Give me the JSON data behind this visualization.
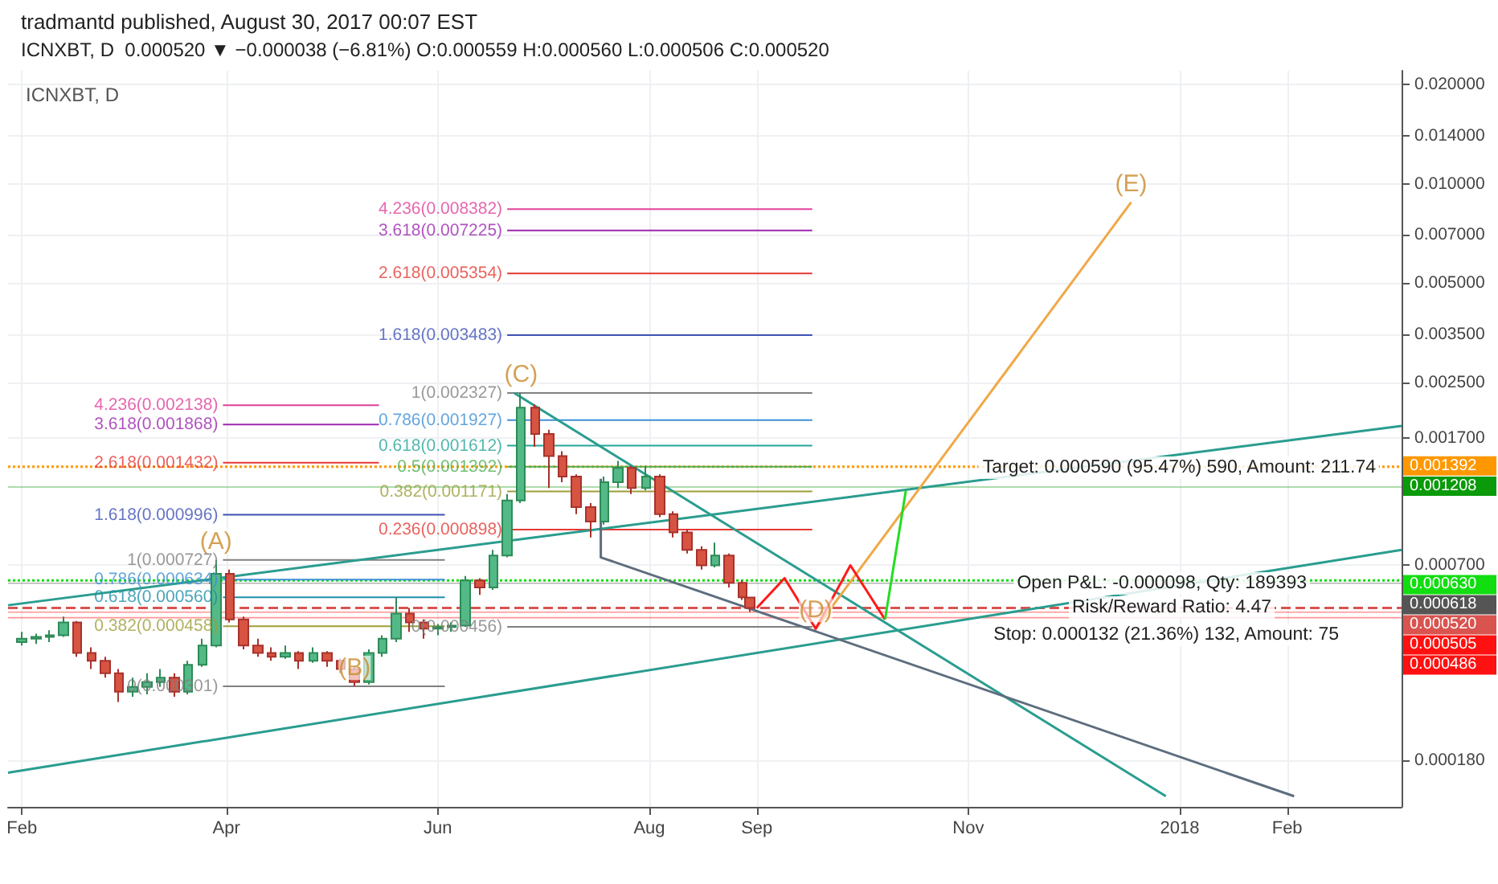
{
  "chart_data": {
    "type": "candlestick",
    "title": "tradmantd published, August 30, 2017 00:07 EST",
    "subtitle": "ICNXBT, D  0.000520 ▼ −0.000038 (−6.81%) O:0.000559 H:0.000560 L:0.000506 C:0.000520",
    "x": [
      "2017-02-01",
      "2017-02-05",
      "2017-02-09",
      "2017-02-13",
      "2017-02-17",
      "2017-02-21",
      "2017-02-25",
      "2017-03-01",
      "2017-03-05",
      "2017-03-09",
      "2017-03-13",
      "2017-03-17",
      "2017-03-21",
      "2017-03-25",
      "2017-03-29",
      "2017-04-02",
      "2017-04-06",
      "2017-04-10",
      "2017-04-14",
      "2017-04-18",
      "2017-04-22",
      "2017-04-26",
      "2017-04-30",
      "2017-05-04",
      "2017-05-08",
      "2017-05-12",
      "2017-05-16",
      "2017-05-20",
      "2017-05-24",
      "2017-05-28",
      "2017-06-01",
      "2017-06-05",
      "2017-06-09",
      "2017-06-13",
      "2017-06-17",
      "2017-06-21",
      "2017-06-25",
      "2017-06-29",
      "2017-07-03",
      "2017-07-07",
      "2017-07-11",
      "2017-07-15",
      "2017-07-19",
      "2017-07-23",
      "2017-07-27",
      "2017-07-31",
      "2017-08-04",
      "2017-08-08",
      "2017-08-12",
      "2017-08-16",
      "2017-08-20",
      "2017-08-24",
      "2017-08-28",
      "2017-08-30"
    ],
    "ohlc": [
      [
        0.00041,
        0.00044,
        0.0004,
        0.00042
      ],
      [
        0.00042,
        0.000435,
        0.000405,
        0.000425
      ],
      [
        0.000425,
        0.000445,
        0.00041,
        0.00043
      ],
      [
        0.00043,
        0.00049,
        0.000425,
        0.00047
      ],
      [
        0.00047,
        0.000475,
        0.00037,
        0.00038
      ],
      [
        0.00038,
        0.000395,
        0.00034,
        0.00036
      ],
      [
        0.00036,
        0.00037,
        0.00032,
        0.00033
      ],
      [
        0.00033,
        0.00034,
        0.00027,
        0.00029
      ],
      [
        0.00029,
        0.00032,
        0.00028,
        0.0003
      ],
      [
        0.0003,
        0.00033,
        0.000285,
        0.00031
      ],
      [
        0.00031,
        0.00034,
        0.0003,
        0.00032
      ],
      [
        0.00032,
        0.00033,
        0.00028,
        0.00029
      ],
      [
        0.00029,
        0.00036,
        0.000285,
        0.00035
      ],
      [
        0.00035,
        0.00042,
        0.000345,
        0.0004
      ],
      [
        0.0004,
        0.000727,
        0.000395,
        0.00066
      ],
      [
        0.00066,
        0.00068,
        0.00047,
        0.00048
      ],
      [
        0.00048,
        0.00049,
        0.00039,
        0.0004
      ],
      [
        0.0004,
        0.00042,
        0.00037,
        0.00038
      ],
      [
        0.00038,
        0.000395,
        0.00036,
        0.00037
      ],
      [
        0.00037,
        0.0004,
        0.000365,
        0.00038
      ],
      [
        0.00038,
        0.000385,
        0.00034,
        0.00036
      ],
      [
        0.00036,
        0.000395,
        0.000355,
        0.00038
      ],
      [
        0.00038,
        0.000385,
        0.000345,
        0.00036
      ],
      [
        0.00036,
        0.000365,
        0.00033,
        0.00034
      ],
      [
        0.00034,
        0.000345,
        0.000301,
        0.00031
      ],
      [
        0.00031,
        0.00039,
        0.000305,
        0.00038
      ],
      [
        0.00038,
        0.00043,
        0.00037,
        0.00042
      ],
      [
        0.00042,
        0.00056,
        0.00041,
        0.0005
      ],
      [
        0.0005,
        0.00052,
        0.00044,
        0.00047
      ],
      [
        0.00047,
        0.00048,
        0.00042,
        0.00045
      ],
      [
        0.00045,
        0.000465,
        0.00043,
        0.000455
      ],
      [
        0.000455,
        0.00047,
        0.00044,
        0.00046
      ],
      [
        0.00046,
        0.00065,
        0.000456,
        0.00063
      ],
      [
        0.00063,
        0.00064,
        0.00057,
        0.0006
      ],
      [
        0.0006,
        0.00078,
        0.00059,
        0.00075
      ],
      [
        0.00075,
        0.00115,
        0.00074,
        0.0011
      ],
      [
        0.0011,
        0.002327,
        0.00108,
        0.0021
      ],
      [
        0.0021,
        0.00215,
        0.0016,
        0.00175
      ],
      [
        0.00175,
        0.0018,
        0.0012,
        0.0015
      ],
      [
        0.0015,
        0.00155,
        0.00125,
        0.0013
      ],
      [
        0.0013,
        0.00132,
        0.001,
        0.00105
      ],
      [
        0.00105,
        0.00108,
        0.00085,
        0.00095
      ],
      [
        0.00095,
        0.0013,
        0.00093,
        0.00125
      ],
      [
        0.00125,
        0.00145,
        0.0012,
        0.00138
      ],
      [
        0.00138,
        0.0014,
        0.00115,
        0.0012
      ],
      [
        0.0012,
        0.0014,
        0.00118,
        0.0013
      ],
      [
        0.0013,
        0.00132,
        0.00098,
        0.001
      ],
      [
        0.001,
        0.00102,
        0.00085,
        0.00088
      ],
      [
        0.00088,
        0.0009,
        0.00076,
        0.00078
      ],
      [
        0.00078,
        0.0008,
        0.00068,
        0.0007
      ],
      [
        0.0007,
        0.00082,
        0.00069,
        0.00075
      ],
      [
        0.00075,
        0.00076,
        0.0006,
        0.00062
      ],
      [
        0.00062,
        0.00063,
        0.00055,
        0.00056
      ],
      [
        0.000559,
        0.00056,
        0.000506,
        0.00052
      ]
    ],
    "series": [
      {
        "type": "line",
        "color": "#2a9d8f",
        "x": [
          "2017-01-28",
          "2018-03-06"
        ],
        "values": [
          0.000165,
          0.00078
        ]
      },
      {
        "type": "line",
        "color": "#2a9d8f",
        "x": [
          "2017-01-28",
          "2018-03-06"
        ],
        "values": [
          0.00053,
          0.00185
        ]
      },
      {
        "type": "line",
        "color": "#2a9d8f",
        "x": [
          "2017-06-23",
          "2017-12-28"
        ],
        "values": [
          0.002327,
          0.00014
        ]
      },
      {
        "type": "line",
        "color": "#5d6d7e",
        "x": [
          "2017-07-18",
          "2017-07-18",
          "2018-02-03"
        ],
        "values": [
          0.00128,
          0.00074,
          0.00014
        ]
      },
      {
        "type": "line",
        "color": "#f0a848",
        "x": [
          "2017-09-18",
          "2017-12-18"
        ],
        "values": [
          0.00045,
          0.0088
        ]
      },
      {
        "type": "line",
        "color": "#ff1a1a",
        "x": [
          "2017-09-01",
          "2017-09-09",
          "2017-09-18",
          "2017-09-28",
          "2017-10-08"
        ],
        "values": [
          0.00052,
          0.00064,
          0.00045,
          0.0007,
          0.00048
        ]
      },
      {
        "type": "line",
        "color": "#22dd22",
        "x": [
          "2017-10-08",
          "2017-10-14"
        ],
        "values": [
          0.00048,
          0.00118
        ]
      },
      {
        "type": "line",
        "name": "4.236(0.002138)",
        "color": "#e0409a",
        "x": [
          "2017-03-31",
          "2017-05-15"
        ],
        "values": [
          0.002138,
          0.002138
        ]
      },
      {
        "type": "line",
        "name": "3.618(0.001868)",
        "color": "#9c27b0",
        "x": [
          "2017-03-31",
          "2017-05-15"
        ],
        "values": [
          0.001868,
          0.001868
        ]
      },
      {
        "type": "line",
        "name": "2.618(0.001432)",
        "color": "#e53935",
        "x": [
          "2017-03-31",
          "2017-05-15"
        ],
        "values": [
          0.001432,
          0.001432
        ]
      },
      {
        "type": "line",
        "name": "1.618(0.000996)",
        "color": "#3f51b5",
        "x": [
          "2017-03-31",
          "2017-06-03"
        ],
        "values": [
          0.000996,
          0.000996
        ]
      },
      {
        "type": "line",
        "name": "1(0.000727)",
        "color": "#808080",
        "x": [
          "2017-03-31",
          "2017-06-03"
        ],
        "values": [
          0.000727,
          0.000727
        ]
      },
      {
        "type": "line",
        "name": "0.786(0.000634)",
        "color": "#3d8fd6",
        "x": [
          "2017-03-31",
          "2017-06-03"
        ],
        "values": [
          0.000634,
          0.000634
        ]
      },
      {
        "type": "line",
        "name": "0.618(0.000560)",
        "color": "#1f8fa8",
        "x": [
          "2017-03-31",
          "2017-06-03"
        ],
        "values": [
          0.00056,
          0.00056
        ]
      },
      {
        "type": "line",
        "name": "0.382(0.000458)",
        "color": "#9e9e3a",
        "x": [
          "2017-03-31",
          "2017-06-03"
        ],
        "values": [
          0.000458,
          0.000458
        ]
      },
      {
        "type": "line",
        "name": "0(0.000301)",
        "color": "#808080",
        "x": [
          "2017-03-31",
          "2017-06-03"
        ],
        "values": [
          0.000301,
          0.000301
        ]
      },
      {
        "type": "line",
        "name": "4.236(0.008382)",
        "color": "#e0409a",
        "x": [
          "2017-06-21",
          "2017-09-17"
        ],
        "values": [
          0.008382,
          0.008382
        ]
      },
      {
        "type": "line",
        "name": "3.618(0.007225)",
        "color": "#9c27b0",
        "x": [
          "2017-06-21",
          "2017-09-17"
        ],
        "values": [
          0.007225,
          0.007225
        ]
      },
      {
        "type": "line",
        "name": "2.618(0.005354)",
        "color": "#e53935",
        "x": [
          "2017-06-21",
          "2017-09-17"
        ],
        "values": [
          0.005354,
          0.005354
        ]
      },
      {
        "type": "line",
        "name": "1.618(0.003483)",
        "color": "#3f51b5",
        "x": [
          "2017-06-21",
          "2017-09-17"
        ],
        "values": [
          0.003483,
          0.003483
        ]
      },
      {
        "type": "line",
        "name": "1(0.002327)",
        "color": "#808080",
        "x": [
          "2017-06-21",
          "2017-09-17"
        ],
        "values": [
          0.002327,
          0.002327
        ]
      },
      {
        "type": "line",
        "name": "0.786(0.001927)",
        "color": "#3d8fd6",
        "x": [
          "2017-06-21",
          "2017-09-17"
        ],
        "values": [
          0.001927,
          0.001927
        ]
      },
      {
        "type": "line",
        "name": "0.618(0.001612)",
        "color": "#26a69a",
        "x": [
          "2017-06-21",
          "2017-09-17"
        ],
        "values": [
          0.001612,
          0.001612
        ]
      },
      {
        "type": "line",
        "name": "0.5(0.001392)",
        "color": "#4caf50",
        "x": [
          "2017-06-21",
          "2017-09-17"
        ],
        "values": [
          0.001392,
          0.001392
        ]
      },
      {
        "type": "line",
        "name": "0.382(0.001171)",
        "color": "#9e9e3a",
        "x": [
          "2017-06-21",
          "2017-09-17"
        ],
        "values": [
          0.001171,
          0.001171
        ]
      },
      {
        "type": "line",
        "name": "0.236(0.000898)",
        "color": "#e53935",
        "x": [
          "2017-06-21",
          "2017-09-17"
        ],
        "values": [
          0.000898,
          0.000898
        ]
      },
      {
        "type": "line",
        "name": "0(0.000456)",
        "color": "#808080",
        "x": [
          "2017-06-21",
          "2017-09-17"
        ],
        "values": [
          0.000456,
          0.000456
        ]
      }
    ],
    "ref_lines": [
      {
        "axis": "y",
        "value": 0.001392,
        "label": "0.001392",
        "color": "#ff9800",
        "line_style": "dotted"
      },
      {
        "axis": "y",
        "value": 0.001208,
        "label": "0.001208",
        "color": "#0a9a0a",
        "line_style": "solid"
      },
      {
        "axis": "y",
        "value": 0.00063,
        "label": "0.000630",
        "color": "#11dd11",
        "line_style": "dotted"
      },
      {
        "axis": "y",
        "value": 0.000618,
        "label": "0.000618",
        "color": "#555555",
        "line_style": "solid"
      },
      {
        "axis": "y",
        "value": 0.00052,
        "label": "0.000520",
        "color": "#d9534f",
        "line_style": "dashed"
      },
      {
        "axis": "y",
        "value": 0.000505,
        "label": "0.000505",
        "color": "#ff1111",
        "line_style": "solid"
      },
      {
        "axis": "y",
        "value": 0.000486,
        "label": "0.000486",
        "color": "#ff1111",
        "line_style": "solid"
      }
    ],
    "annotations": [
      "ICNXBT, D",
      "Target: 0.000590 (95.47%) 590, Amount: 211.74",
      "Open P&L: -0.000098, Qty: 189393",
      "Risk/Reward Ratio: 4.47",
      "Stop: 0.000132 (21.36%) 132, Amount: 75",
      {
        "text": "(A)",
        "x": "2017-03-29",
        "y": 0.000727
      },
      {
        "text": "(B)",
        "x": "2017-05-08",
        "y": 0.000301
      },
      {
        "text": "(C)",
        "x": "2017-06-25",
        "y": 0.002327
      },
      {
        "text": "(D)",
        "x": "2017-09-18",
        "y": 0.00045
      },
      {
        "text": "(E)",
        "x": "2017-12-18",
        "y": 0.0088
      }
    ],
    "log": "y",
    "grid": true,
    "marker": "none",
    "xlim": [
      "2017-01-28",
      "2018-03-06"
    ],
    "xticks": [
      {
        "value": "2017-02-01",
        "label": "Feb"
      },
      {
        "value": "2017-04-01",
        "label": "Apr"
      },
      {
        "value": "2017-06-01",
        "label": "Jun"
      },
      {
        "value": "2017-08-01",
        "label": "Aug"
      },
      {
        "value": "2017-09-01",
        "label": "Sep"
      },
      {
        "value": "2017-11-01",
        "label": "Nov"
      },
      {
        "value": "2018-01-01",
        "label": "2018"
      },
      {
        "value": "2018-02-01",
        "label": "Feb"
      }
    ],
    "ylim": [
      0.00013,
      0.022
    ],
    "yticks": [
      {
        "value": 0.00018,
        "label": "0.000180"
      },
      {
        "value": 0.0007,
        "label": "0.000700"
      },
      {
        "value": 0.0017,
        "label": "0.001700"
      },
      {
        "value": 0.0025,
        "label": "0.002500"
      },
      {
        "value": 0.0035,
        "label": "0.003500"
      },
      {
        "value": 0.005,
        "label": "0.005000"
      },
      {
        "value": 0.007,
        "label": "0.007000"
      },
      {
        "value": 0.01,
        "label": "0.010000"
      },
      {
        "value": 0.014,
        "label": "0.014000"
      },
      {
        "value": 0.02,
        "label": "0.020000"
      }
    ]
  }
}
